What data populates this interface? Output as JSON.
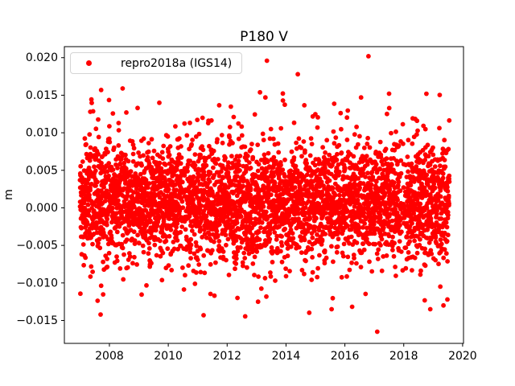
{
  "figure": {
    "background": "#ffffff"
  },
  "chart_data": {
    "type": "scatter",
    "title": "P180 V",
    "xlabel": "",
    "ylabel": "m",
    "grid": false,
    "legend_position": "upper left",
    "legend": [
      {
        "label": "repro2018a (IGS14)",
        "color": "#ff0000",
        "marker": "dot"
      }
    ],
    "marker_color": "#ff0000",
    "marker_radius_px": 2.9,
    "axis_color": "#000000",
    "xlim": [
      2006.47,
      2020.03
    ],
    "ylim": [
      -0.01805,
      0.02147
    ],
    "xticks": [
      2008,
      2010,
      2012,
      2014,
      2016,
      2018,
      2020
    ],
    "yticks": [
      0.02,
      0.015,
      0.01,
      0.005,
      0.0,
      -0.005,
      -0.01,
      -0.015
    ],
    "point_cloud": {
      "description": "Daily vertical-position residuals, approx uniform daily sampling 2007.0-2019.55; dense core band roughly -0.006 to +0.008 m around mean; values estimated from pixels",
      "n": 4200,
      "x_start": 2007.0,
      "x_end": 2019.55,
      "y_mean": 0.0008,
      "y_std": 0.0038,
      "heavy_frac": 0.1,
      "heavy_std": 0.006,
      "thin": 0.05,
      "sparse_windows": [
        [
          2017.85,
          2018.1
        ],
        [
          2010.45,
          2010.6
        ]
      ],
      "seed": 42
    },
    "outliers": [
      {
        "x": 2007.35,
        "y": 0.0128
      },
      {
        "x": 2007.7,
        "y": -0.0142
      },
      {
        "x": 2007.72,
        "y": 0.0157
      },
      {
        "x": 2008.45,
        "y": 0.0159
      },
      {
        "x": 2011.2,
        "y": -0.0143
      },
      {
        "x": 2012.35,
        "y": -0.012
      },
      {
        "x": 2013.05,
        "y": -0.0125
      },
      {
        "x": 2013.35,
        "y": 0.0196
      },
      {
        "x": 2013.3,
        "y": 0.0147
      },
      {
        "x": 2014.4,
        "y": 0.0178
      },
      {
        "x": 2015.55,
        "y": -0.0135
      },
      {
        "x": 2016.55,
        "y": 0.0147
      },
      {
        "x": 2016.8,
        "y": 0.0202
      },
      {
        "x": 2017.1,
        "y": -0.0165
      },
      {
        "x": 2017.5,
        "y": 0.0152
      },
      {
        "x": 2018.9,
        "y": -0.0135
      },
      {
        "x": 2019.35,
        "y": -0.013
      }
    ]
  }
}
